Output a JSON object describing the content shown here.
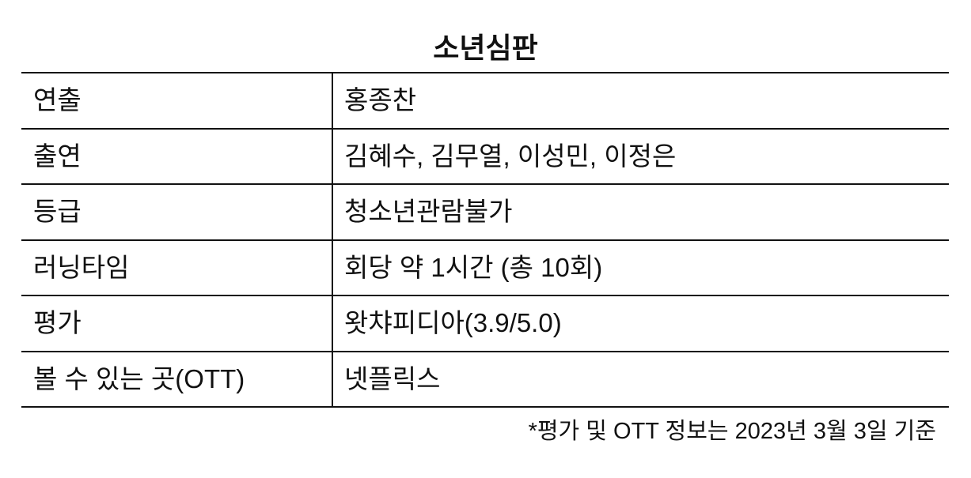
{
  "title": "소년심판",
  "rows": [
    {
      "label": "연출",
      "value": "홍종찬"
    },
    {
      "label": "출연",
      "value": "김혜수, 김무열, 이성민, 이정은"
    },
    {
      "label": "등급",
      "value": "청소년관람불가"
    },
    {
      "label": "러닝타임",
      "value": "회당 약 1시간 (총 10회)"
    },
    {
      "label": "평가",
      "value": "왓챠피디아(3.9/5.0)"
    },
    {
      "label": "볼 수 있는 곳(OTT)",
      "value": "넷플릭스"
    }
  ],
  "footnote": "*평가 및 OTT 정보는 2023년 3월 3일 기준"
}
